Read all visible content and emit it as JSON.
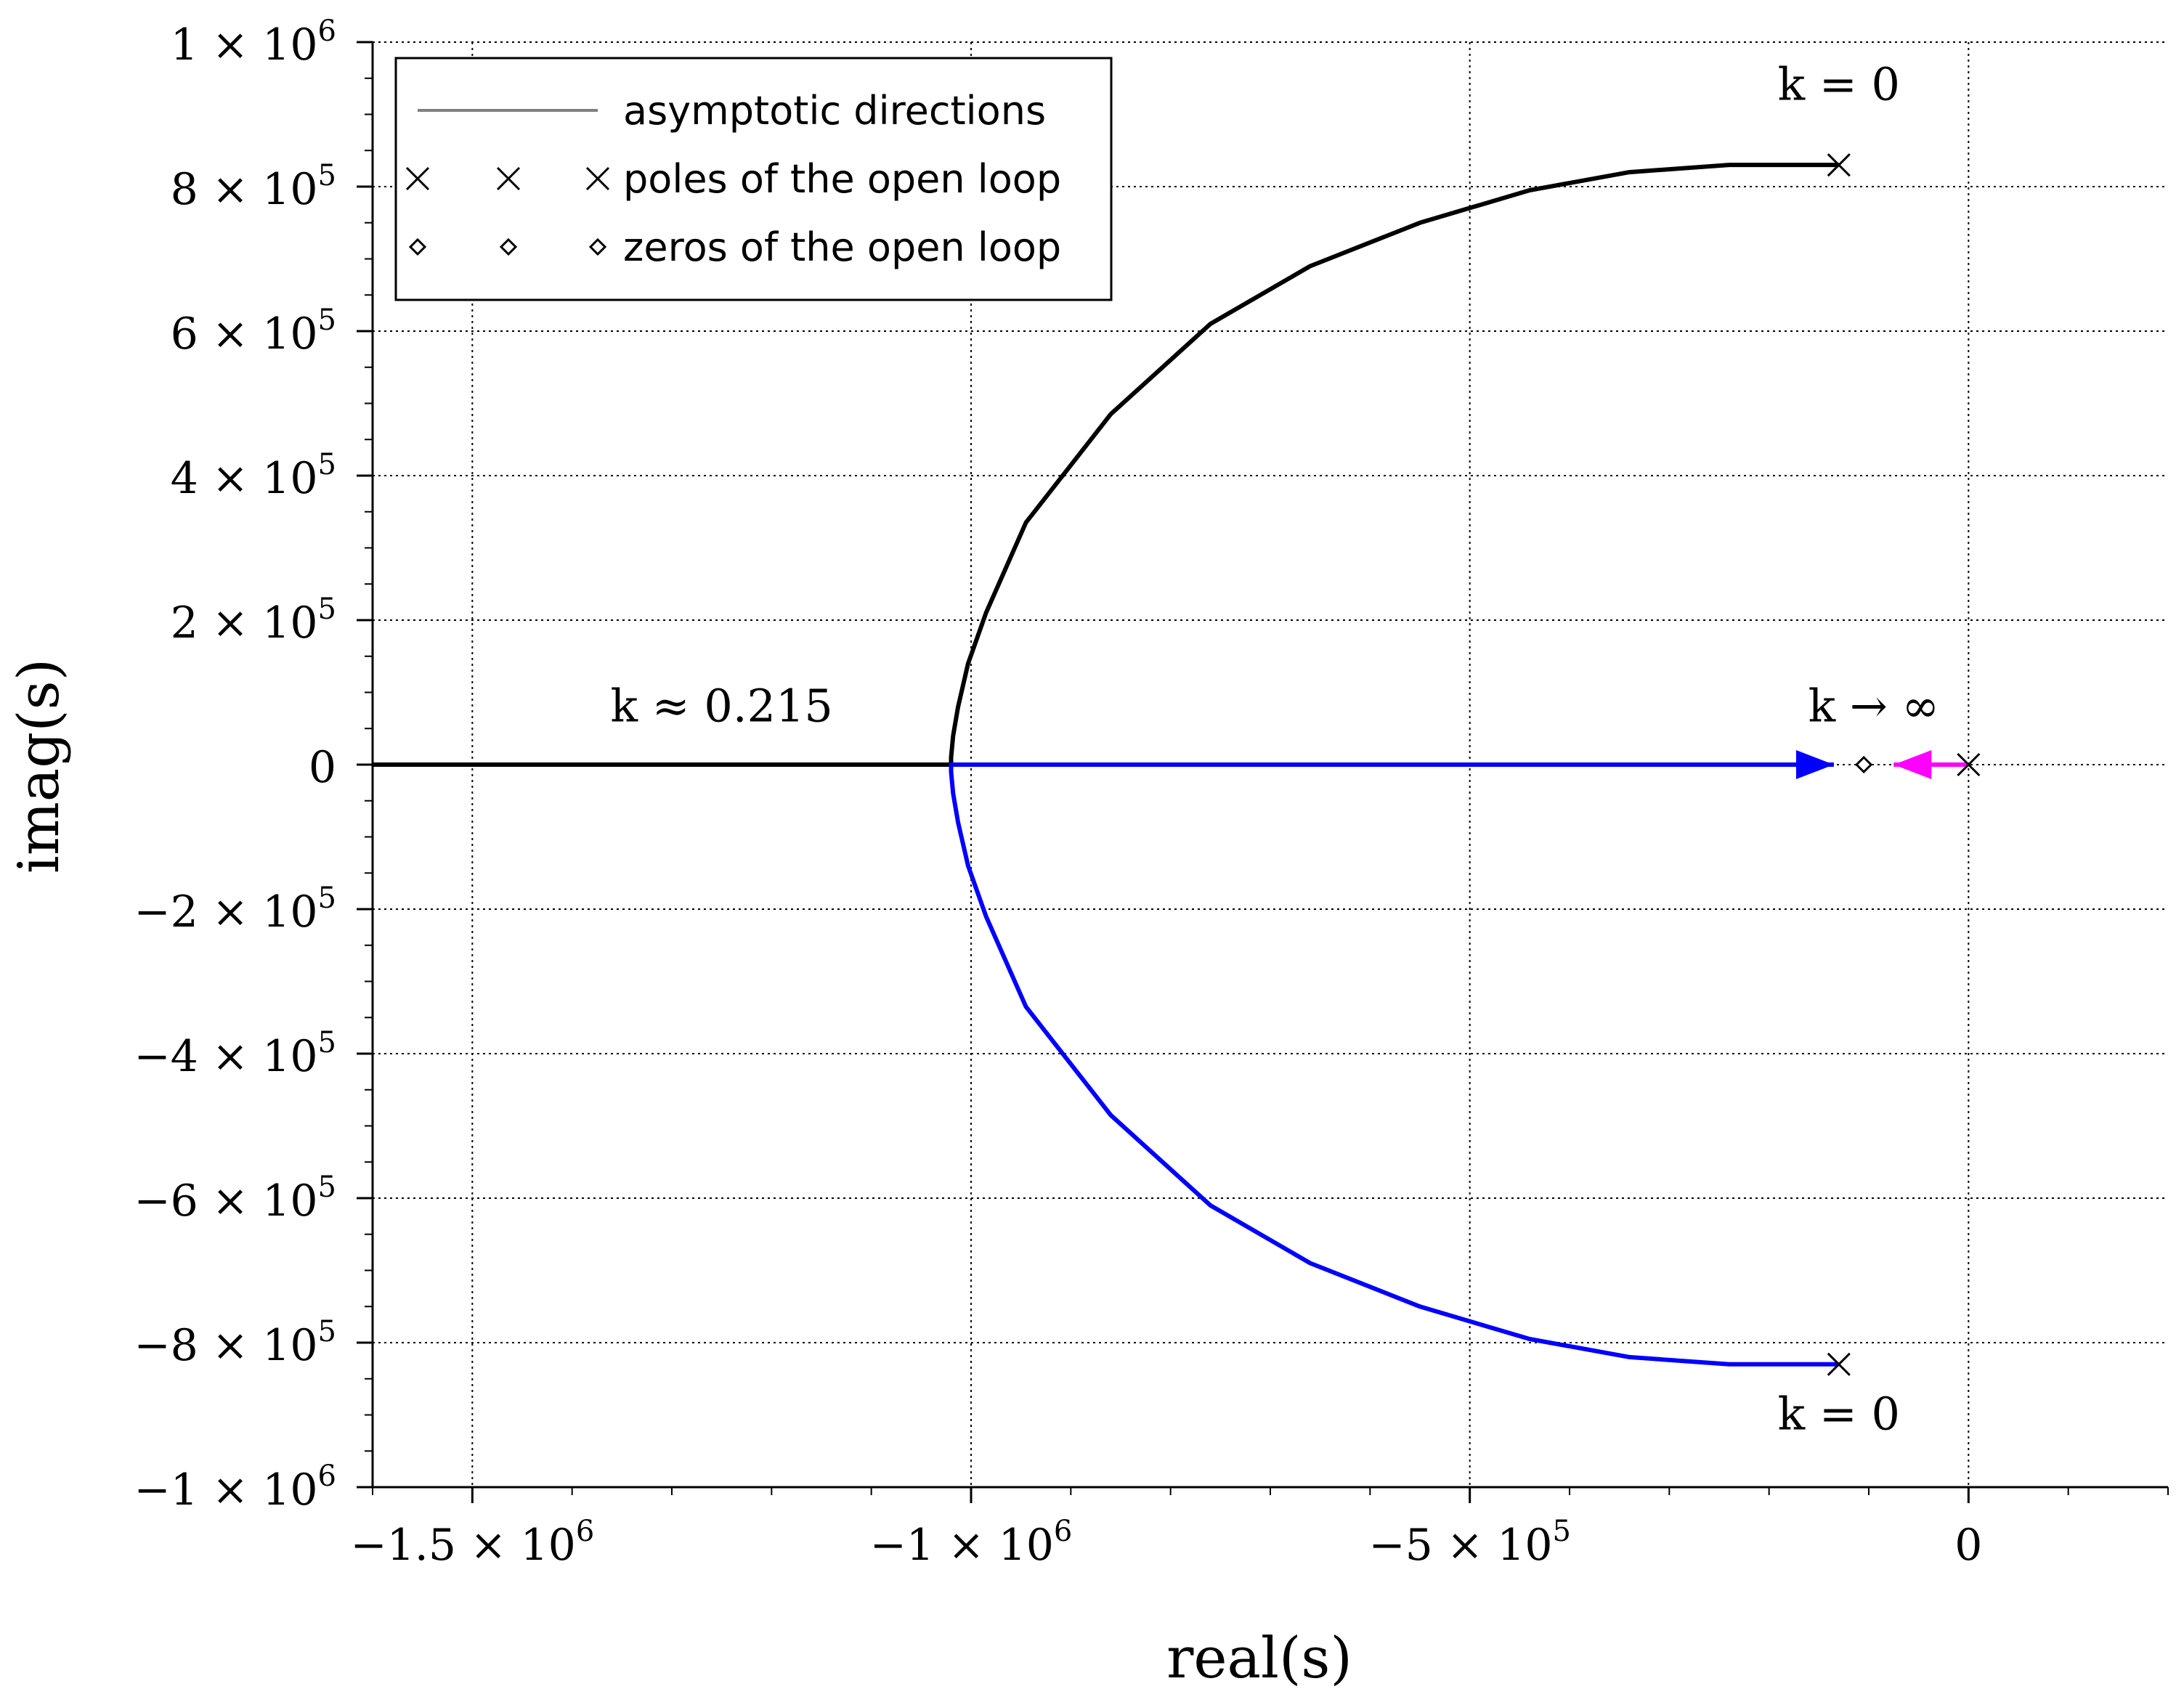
{
  "chart_data": {
    "type": "line",
    "title": "",
    "xlabel": "real(s)",
    "ylabel": "imag(s)",
    "xlim": [
      -1600000,
      200000
    ],
    "ylim": [
      -1000000,
      1000000
    ],
    "grid": true,
    "legend_placement": "top-left",
    "x_ticks": [
      {
        "value": -1500000,
        "label": "−1.5 × 10",
        "exp": "6"
      },
      {
        "value": -1000000,
        "label": "−1 × 10",
        "exp": "6"
      },
      {
        "value": -500000,
        "label": "−5 × 10",
        "exp": "5"
      },
      {
        "value": 0,
        "label": "0",
        "exp": ""
      }
    ],
    "y_ticks": [
      {
        "value": 1000000,
        "label": "1 × 10",
        "exp": "6"
      },
      {
        "value": 800000,
        "label": "8 × 10",
        "exp": "5"
      },
      {
        "value": 600000,
        "label": "6 × 10",
        "exp": "5"
      },
      {
        "value": 400000,
        "label": "4 × 10",
        "exp": "5"
      },
      {
        "value": 200000,
        "label": "2 × 10",
        "exp": "5"
      },
      {
        "value": 0,
        "label": "0",
        "exp": ""
      },
      {
        "value": -200000,
        "label": "−2 × 10",
        "exp": "5"
      },
      {
        "value": -400000,
        "label": "−4 × 10",
        "exp": "5"
      },
      {
        "value": -600000,
        "label": "−6 × 10",
        "exp": "5"
      },
      {
        "value": -800000,
        "label": "−8 × 10",
        "exp": "5"
      },
      {
        "value": -1000000,
        "label": "−1 × 10",
        "exp": "6"
      }
    ],
    "legend": [
      {
        "label": "asymptotic directions",
        "kind": "line",
        "color": "#808080"
      },
      {
        "label": "poles of the open loop",
        "kind": "cross",
        "color": "#000000"
      },
      {
        "label": "zeros of the open loop",
        "kind": "diamond",
        "color": "#000000"
      }
    ],
    "series": [
      {
        "color": "#000000",
        "x": [
          -130000,
          -170000,
          -240000,
          -340000,
          -440000,
          -550000,
          -660000,
          -760000,
          -860000,
          -945000,
          -985000,
          -1003000,
          -1013000,
          -1018000,
          -1020000,
          -1020000,
          -1600000
        ],
        "y": [
          830000,
          830000,
          830000,
          820000,
          795000,
          750000,
          690000,
          610000,
          485000,
          335000,
          210000,
          140000,
          80000,
          40000,
          10000,
          0,
          0
        ]
      },
      {
        "color": "#0000ff",
        "x": [
          -130000,
          -170000,
          -240000,
          -340000,
          -440000,
          -550000,
          -660000,
          -760000,
          -860000,
          -945000,
          -985000,
          -1003000,
          -1013000,
          -1018000,
          -1020000,
          -1020000,
          -135000
        ],
        "y": [
          -830000,
          -830000,
          -830000,
          -820000,
          -795000,
          -750000,
          -690000,
          -610000,
          -485000,
          -335000,
          -210000,
          -140000,
          -80000,
          -40000,
          -10000,
          0,
          0
        ]
      },
      {
        "color": "#ff00ff",
        "x": [
          0,
          -75000
        ],
        "y": [
          0,
          0
        ]
      }
    ],
    "poles": [
      {
        "x": -130000,
        "y": 830000
      },
      {
        "x": -130000,
        "y": -830000
      },
      {
        "x": 0,
        "y": 0
      }
    ],
    "zeros": [
      {
        "x": -105000,
        "y": 0
      }
    ],
    "annotations": [
      {
        "text": "k = 0",
        "x": -130000,
        "y": 920000
      },
      {
        "text": "k = 0",
        "x": -130000,
        "y": -920000
      },
      {
        "text": "k ≈ 0.215",
        "x": -1250000,
        "y": 60000
      },
      {
        "text": "k → ∞",
        "x": -95000,
        "y": 60000
      }
    ]
  }
}
